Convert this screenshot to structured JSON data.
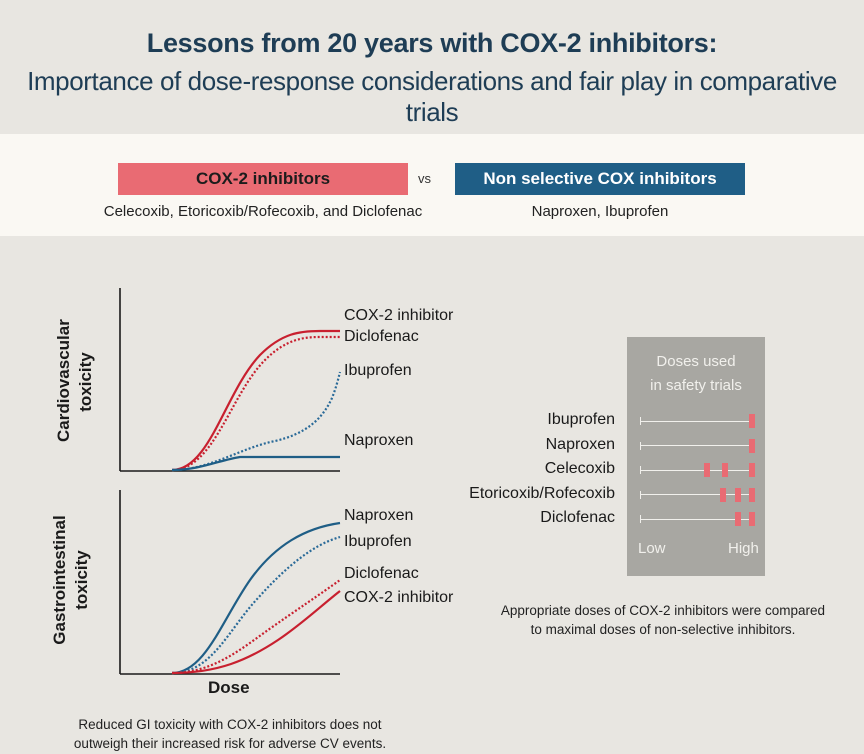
{
  "header": {
    "title": "Lessons from 20 years with COX-2 inhibitors:",
    "subtitle": "Importance of dose-response considerations and fair play in comparative trials"
  },
  "comparison": {
    "left_label": "COX-2 inhibitors",
    "left_drugs": "Celecoxib, Etoricoxib/Rofecoxib, and Diclofenac",
    "vs": "vs",
    "right_label": "Non selective COX inhibitors",
    "right_drugs": "Naproxen, Ibuprofen"
  },
  "colors": {
    "cox2": "#c8202f",
    "nonselective": "#1f5e86",
    "cox2_fill": "#e96b73"
  },
  "panels": {
    "cardio": {
      "ylabel_line1": "Cardiovascular",
      "ylabel_line2": "toxicity",
      "labels": [
        "COX-2 inhibitor",
        "Diclofenac",
        "Ibuprofen",
        "Naproxen"
      ]
    },
    "gi": {
      "ylabel_line1": "Gastrointestinal",
      "ylabel_line2": "toxicity",
      "labels": [
        "Naproxen",
        "Ibuprofen",
        "Diclofenac",
        "COX-2 inhibitor"
      ]
    },
    "xlabel": "Dose",
    "caption_line1": "Reduced GI toxicity with COX-2 inhibitors does not",
    "caption_line2": "outweigh their increased risk for adverse CV events."
  },
  "doses": {
    "title_line1": "Doses used",
    "title_line2": "in safety trials",
    "rows": [
      {
        "drug": "Ibuprofen",
        "marks": [
          0.95
        ]
      },
      {
        "drug": "Naproxen",
        "marks": [
          0.95
        ]
      },
      {
        "drug": "Celecoxib",
        "marks": [
          0.57,
          0.72,
          0.95
        ]
      },
      {
        "drug": "Etoricoxib/Rofecoxib",
        "marks": [
          0.7,
          0.83,
          0.95
        ]
      },
      {
        "drug": "Diclofenac",
        "marks": [
          0.83,
          0.95
        ]
      }
    ],
    "low": "Low",
    "high": "High",
    "caption_line1": "Appropriate doses of COX-2 inhibitors were compared",
    "caption_line2": "to maximal doses of non-selective inhibitors."
  }
}
